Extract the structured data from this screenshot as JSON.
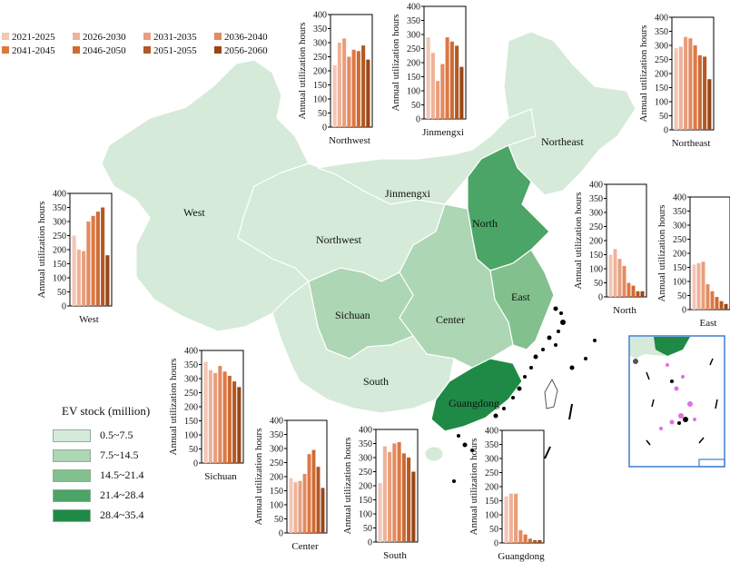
{
  "periods": [
    {
      "label": "2021-2025",
      "color": "#f4c6b5"
    },
    {
      "label": "2026-2030",
      "color": "#eeb298"
    },
    {
      "label": "2031-2035",
      "color": "#e89e7c"
    },
    {
      "label": "2036-2040",
      "color": "#e38a60"
    },
    {
      "label": "2041-2045",
      "color": "#dd7843"
    },
    {
      "label": "2046-2050",
      "color": "#cf6a32"
    },
    {
      "label": "2051-2055",
      "color": "#b45824"
    },
    {
      "label": "2056-2060",
      "color": "#984616"
    }
  ],
  "ev_legend": {
    "title": "EV stock (million)",
    "classes": [
      {
        "label": "0.5~7.5",
        "color": "#d5ead9"
      },
      {
        "label": "7.5~14.5",
        "color": "#acd6b4"
      },
      {
        "label": "14.5~21.4",
        "color": "#82c08e"
      },
      {
        "label": "21.4~28.4",
        "color": "#4aa566"
      },
      {
        "label": "28.4~35.4",
        "color": "#1f8a45"
      }
    ]
  },
  "region_labels": {
    "west": "West",
    "northwest": "Northwest",
    "jinmengxi": "Jinmengxi",
    "northeast": "Northeast",
    "north": "North",
    "east": "East",
    "center": "Center",
    "sichuan": "Sichuan",
    "south": "South",
    "guangdong": "Guangdong"
  },
  "chart_data": [
    {
      "type": "bar",
      "region": "Northwest",
      "ylabel": "Annual utilization hours",
      "ylim": [
        0,
        400
      ],
      "yticks": [
        0,
        50,
        100,
        150,
        200,
        250,
        300,
        350,
        400
      ],
      "categories": [
        "2021-2025",
        "2026-2030",
        "2031-2035",
        "2036-2040",
        "2041-2045",
        "2046-2050",
        "2051-2055",
        "2056-2060"
      ],
      "values": [
        220,
        300,
        315,
        250,
        275,
        270,
        290,
        240
      ]
    },
    {
      "type": "bar",
      "region": "Jinmengxi",
      "ylabel": "Annual utilization hours",
      "ylim": [
        0,
        400
      ],
      "yticks": [
        0,
        50,
        100,
        150,
        200,
        250,
        300,
        350,
        400
      ],
      "categories": [
        "2021-2025",
        "2026-2030",
        "2031-2035",
        "2036-2040",
        "2041-2045",
        "2046-2050",
        "2051-2055",
        "2056-2060"
      ],
      "values": [
        290,
        235,
        135,
        195,
        290,
        275,
        260,
        185
      ]
    },
    {
      "type": "bar",
      "region": "Northeast",
      "ylabel": "Annual utilization hours",
      "ylim": [
        0,
        400
      ],
      "yticks": [
        0,
        50,
        100,
        150,
        200,
        250,
        300,
        350,
        400
      ],
      "categories": [
        "2021-2025",
        "2026-2030",
        "2031-2035",
        "2036-2040",
        "2041-2045",
        "2046-2050",
        "2051-2055",
        "2056-2060"
      ],
      "values": [
        290,
        295,
        330,
        325,
        300,
        265,
        260,
        180
      ]
    },
    {
      "type": "bar",
      "region": "West",
      "ylabel": "Annual utilization hours",
      "ylim": [
        0,
        400
      ],
      "yticks": [
        0,
        50,
        100,
        150,
        200,
        250,
        300,
        350,
        400
      ],
      "categories": [
        "2021-2025",
        "2026-2030",
        "2031-2035",
        "2036-2040",
        "2041-2045",
        "2046-2050",
        "2051-2055",
        "2056-2060"
      ],
      "values": [
        250,
        200,
        195,
        300,
        320,
        335,
        350,
        180
      ]
    },
    {
      "type": "bar",
      "region": "North",
      "ylabel": "Annual utilization hours",
      "ylim": [
        0,
        400
      ],
      "yticks": [
        0,
        50,
        100,
        150,
        200,
        250,
        300,
        350,
        400
      ],
      "categories": [
        "2021-2025",
        "2026-2030",
        "2031-2035",
        "2036-2040",
        "2041-2045",
        "2046-2050",
        "2051-2055",
        "2056-2060"
      ],
      "values": [
        150,
        170,
        135,
        110,
        50,
        40,
        20,
        20
      ]
    },
    {
      "type": "bar",
      "region": "East",
      "ylabel": "Annual utilization hours",
      "ylim": [
        0,
        400
      ],
      "yticks": [
        0,
        50,
        100,
        150,
        200,
        250,
        300,
        350,
        400
      ],
      "categories": [
        "2021-2025",
        "2026-2030",
        "2031-2035",
        "2036-2040",
        "2041-2045",
        "2046-2050",
        "2051-2055",
        "2056-2060"
      ],
      "values": [
        160,
        165,
        170,
        90,
        65,
        45,
        30,
        20
      ]
    },
    {
      "type": "bar",
      "region": "Sichuan",
      "ylabel": "Annual utilization hours",
      "ylim": [
        0,
        400
      ],
      "yticks": [
        0,
        50,
        100,
        150,
        200,
        250,
        300,
        350,
        400
      ],
      "categories": [
        "2021-2025",
        "2026-2030",
        "2031-2035",
        "2036-2040",
        "2041-2045",
        "2046-2050",
        "2051-2055",
        "2056-2060"
      ],
      "values": [
        360,
        330,
        320,
        345,
        325,
        310,
        290,
        270
      ]
    },
    {
      "type": "bar",
      "region": "Center",
      "ylabel": "Annual utilization hours",
      "ylim": [
        0,
        400
      ],
      "yticks": [
        0,
        50,
        100,
        150,
        200,
        250,
        300,
        350,
        400
      ],
      "categories": [
        "2021-2025",
        "2026-2030",
        "2031-2035",
        "2036-2040",
        "2041-2045",
        "2046-2050",
        "2051-2055",
        "2056-2060"
      ],
      "values": [
        195,
        180,
        185,
        210,
        280,
        295,
        235,
        160
      ]
    },
    {
      "type": "bar",
      "region": "South",
      "ylabel": "Annual utilization hours",
      "ylim": [
        0,
        400
      ],
      "yticks": [
        0,
        50,
        100,
        150,
        200,
        250,
        300,
        350,
        400
      ],
      "categories": [
        "2021-2025",
        "2026-2030",
        "2031-2035",
        "2036-2040",
        "2041-2045",
        "2046-2050",
        "2051-2055",
        "2056-2060"
      ],
      "values": [
        210,
        340,
        320,
        350,
        355,
        315,
        300,
        250
      ]
    },
    {
      "type": "bar",
      "region": "Guangdong",
      "ylabel": "Annual utilization hours",
      "ylim": [
        0,
        400
      ],
      "yticks": [
        0,
        50,
        100,
        150,
        200,
        250,
        300,
        350,
        400
      ],
      "categories": [
        "2021-2025",
        "2026-2030",
        "2031-2035",
        "2036-2040",
        "2041-2045",
        "2046-2050",
        "2051-2055",
        "2056-2060"
      ],
      "values": [
        165,
        175,
        175,
        45,
        30,
        15,
        10,
        10
      ]
    }
  ]
}
